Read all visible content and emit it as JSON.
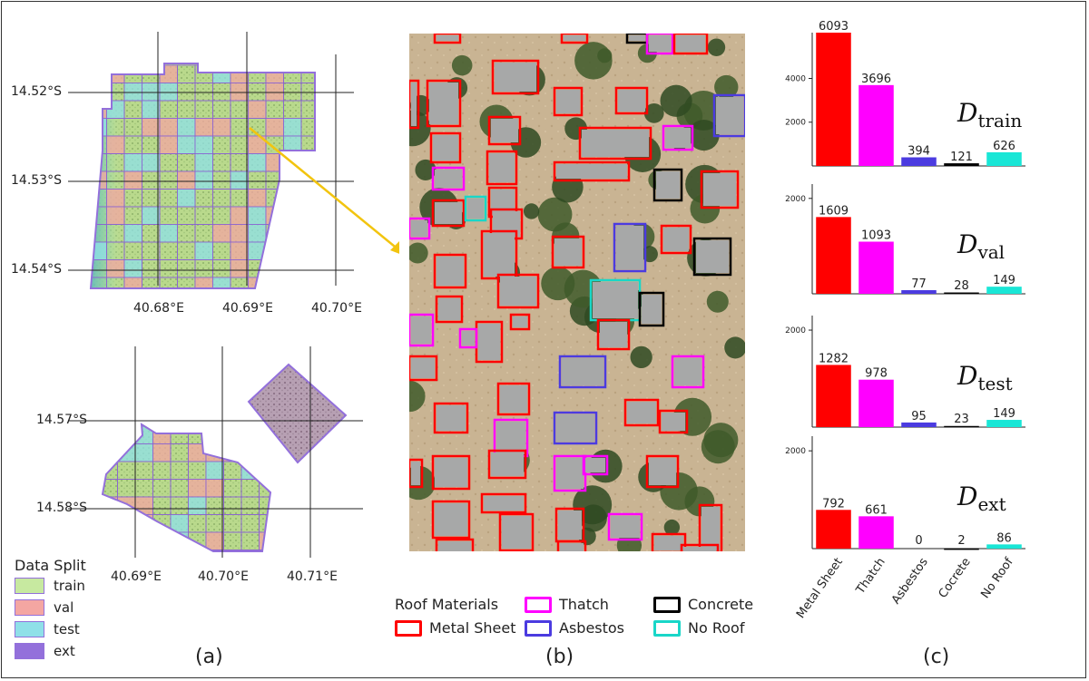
{
  "panels": {
    "a": "(a)",
    "b": "(b)",
    "c": "(c)"
  },
  "map_top": {
    "lat_labels": [
      "14.52°S",
      "14.53°S",
      "14.54°S"
    ],
    "lon_labels": [
      "40.68°E",
      "40.69°E",
      "40.70°E"
    ]
  },
  "map_bottom": {
    "lat_labels": [
      "14.57°S",
      "14.58°S"
    ],
    "lon_labels": [
      "40.69°E",
      "40.70°E",
      "40.71°E"
    ]
  },
  "data_split": {
    "title": "Data Split",
    "items": [
      {
        "label": "train",
        "color": "#c7e9a0"
      },
      {
        "label": "val",
        "color": "#f4a6a2"
      },
      {
        "label": "test",
        "color": "#8fe0e8"
      },
      {
        "label": "ext",
        "color": "#9370db"
      }
    ]
  },
  "roof_materials": {
    "title": "Roof Materials",
    "items": [
      {
        "label": "Metal Sheet",
        "color": "#ff0000"
      },
      {
        "label": "Thatch",
        "color": "#ff00ff"
      },
      {
        "label": "Asbestos",
        "color": "#4b3be0"
      },
      {
        "label": "Concrete",
        "color": "#000000"
      },
      {
        "label": "No Roof",
        "color": "#19d6c8"
      }
    ]
  },
  "chart_data": [
    {
      "type": "bar",
      "name": "train",
      "label_main": "D",
      "label_sub": "train",
      "categories": [
        "Metal Sheet",
        "Thatch",
        "Asbestos",
        "Cocrete",
        "No Roof"
      ],
      "values": [
        6093,
        3696,
        394,
        121,
        626
      ],
      "yticks": [
        2000,
        4000
      ],
      "ylim": [
        0,
        6093
      ],
      "colors": [
        "#ff0000",
        "#ff00ff",
        "#4b3be0",
        "#000000",
        "#19e6d6"
      ]
    },
    {
      "type": "bar",
      "name": "val",
      "label_main": "D",
      "label_sub": "val",
      "categories": [
        "Metal Sheet",
        "Thatch",
        "Asbestos",
        "Cocrete",
        "No Roof"
      ],
      "values": [
        1609,
        1093,
        77,
        28,
        149
      ],
      "yticks": [
        2000
      ],
      "ylim": [
        0,
        2300
      ],
      "colors": [
        "#ff0000",
        "#ff00ff",
        "#4b3be0",
        "#000000",
        "#19e6d6"
      ]
    },
    {
      "type": "bar",
      "name": "test",
      "label_main": "D",
      "label_sub": "test",
      "categories": [
        "Metal Sheet",
        "Thatch",
        "Asbestos",
        "Cocrete",
        "No Roof"
      ],
      "values": [
        1282,
        978,
        95,
        23,
        149
      ],
      "yticks": [
        2000
      ],
      "ylim": [
        0,
        2300
      ],
      "colors": [
        "#ff0000",
        "#ff00ff",
        "#4b3be0",
        "#000000",
        "#19e6d6"
      ]
    },
    {
      "type": "bar",
      "name": "ext",
      "label_main": "D",
      "label_sub": "ext",
      "categories": [
        "Metal Sheet",
        "Thatch",
        "Asbestos",
        "Cocrete",
        "No Roof"
      ],
      "values": [
        792,
        661,
        0,
        2,
        86
      ],
      "yticks": [
        2000
      ],
      "ylim": [
        0,
        2300
      ],
      "colors": [
        "#ff0000",
        "#ff00ff",
        "#4b3be0",
        "#000000",
        "#19e6d6"
      ]
    }
  ]
}
